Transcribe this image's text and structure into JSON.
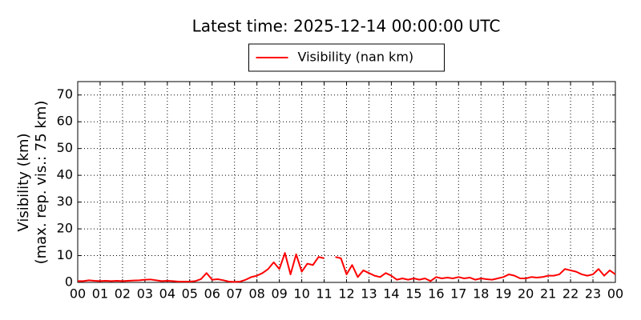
{
  "chart_data": {
    "type": "line",
    "title": "Latest time: 2025-12-14 00:00:00 UTC",
    "ylabel": [
      "Visibility (km)",
      "(max. rep. vis.: 75 km)"
    ],
    "xlim": [
      0,
      24
    ],
    "xticks": [
      {
        "value": 0,
        "label": "00"
      },
      {
        "value": 1,
        "label": "01"
      },
      {
        "value": 2,
        "label": "02"
      },
      {
        "value": 3,
        "label": "03"
      },
      {
        "value": 4,
        "label": "04"
      },
      {
        "value": 5,
        "label": "05"
      },
      {
        "value": 6,
        "label": "06"
      },
      {
        "value": 7,
        "label": "07"
      },
      {
        "value": 8,
        "label": "08"
      },
      {
        "value": 9,
        "label": "09"
      },
      {
        "value": 10,
        "label": "10"
      },
      {
        "value": 11,
        "label": "11"
      },
      {
        "value": 12,
        "label": "12"
      },
      {
        "value": 13,
        "label": "13"
      },
      {
        "value": 14,
        "label": "14"
      },
      {
        "value": 15,
        "label": "15"
      },
      {
        "value": 16,
        "label": "16"
      },
      {
        "value": 17,
        "label": "17"
      },
      {
        "value": 18,
        "label": "18"
      },
      {
        "value": 19,
        "label": "19"
      },
      {
        "value": 20,
        "label": "20"
      },
      {
        "value": 21,
        "label": "21"
      },
      {
        "value": 22,
        "label": "22"
      },
      {
        "value": 23,
        "label": "23"
      },
      {
        "value": 24,
        "label": "00"
      }
    ],
    "ylim": [
      0,
      75
    ],
    "yticks": [
      0,
      10,
      20,
      30,
      40,
      50,
      60,
      70
    ],
    "grid": true,
    "legend": "top",
    "x": [
      0,
      0.25,
      0.5,
      0.75,
      1,
      1.25,
      1.5,
      1.75,
      2,
      2.25,
      2.5,
      2.75,
      3,
      3.25,
      3.5,
      3.75,
      4,
      4.25,
      4.5,
      4.75,
      5,
      5.25,
      5.5,
      5.75,
      6,
      6.25,
      6.5,
      6.75,
      7,
      7.25,
      7.5,
      7.75,
      8,
      8.25,
      8.5,
      8.75,
      9,
      9.25,
      9.5,
      9.75,
      10,
      10.25,
      10.5,
      10.75,
      11,
      11.25,
      11.5,
      11.75,
      12,
      12.25,
      12.5,
      12.75,
      13,
      13.25,
      13.5,
      13.75,
      14,
      14.25,
      14.5,
      14.75,
      15,
      15.25,
      15.5,
      15.75,
      16,
      16.25,
      16.5,
      16.75,
      17,
      17.25,
      17.5,
      17.75,
      18,
      18.25,
      18.5,
      18.75,
      19,
      19.25,
      19.5,
      19.75,
      20,
      20.25,
      20.5,
      20.75,
      21,
      21.25,
      21.5,
      21.75,
      22,
      22.25,
      22.5,
      22.75,
      23,
      23.25,
      23.5,
      23.75,
      24
    ],
    "series": [
      {
        "name": "Visibility (nan km)",
        "color": "#ff0000",
        "values": [
          0.5,
          0.5,
          0.8,
          0.6,
          0.5,
          0.6,
          0.5,
          0.6,
          0.5,
          0.6,
          0.7,
          0.8,
          1,
          1.1,
          0.8,
          0.5,
          0.6,
          0.5,
          0.3,
          0.3,
          0.3,
          0.5,
          1.2,
          3.5,
          1,
          1.2,
          0.8,
          0.3,
          0.2,
          0.3,
          1,
          2,
          2.5,
          3.5,
          5,
          7.5,
          5,
          11,
          3,
          10.5,
          4,
          7,
          6.5,
          9.5,
          9,
          null,
          9.5,
          9,
          3,
          6.5,
          2,
          4.5,
          3.5,
          2.5,
          2,
          3.5,
          2.5,
          1,
          1.5,
          1,
          1.5,
          1,
          1.5,
          0.5,
          2,
          1.5,
          1.8,
          1.5,
          2,
          1.5,
          1.8,
          1,
          1.5,
          1.2,
          1,
          1.5,
          2,
          3,
          2.5,
          1.5,
          1.5,
          2,
          1.8,
          2,
          2.5,
          2.5,
          3,
          5,
          4.5,
          4,
          3,
          2.5,
          3,
          5,
          2.5,
          4.5,
          3
        ]
      }
    ]
  }
}
